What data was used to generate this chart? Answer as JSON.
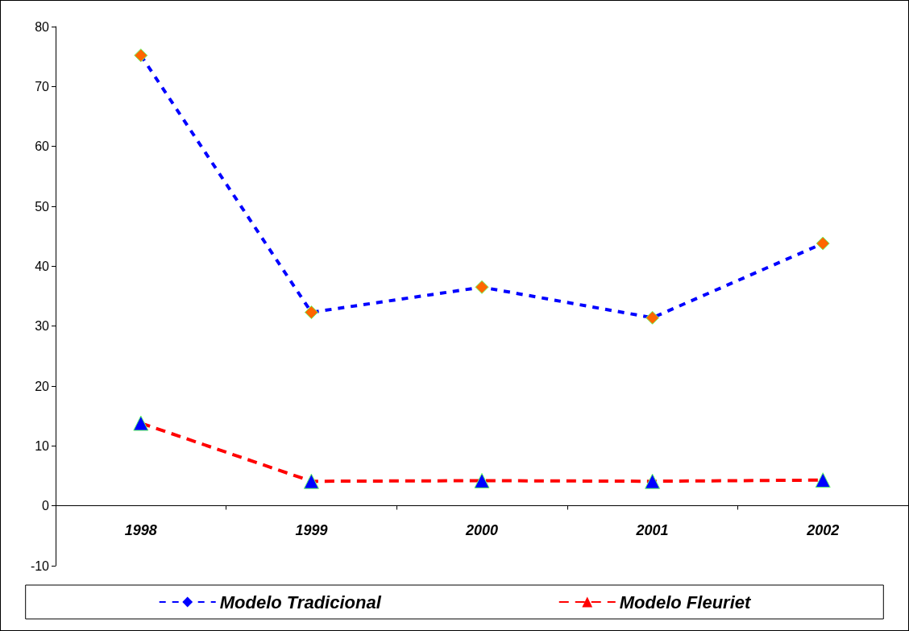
{
  "chart_data": {
    "type": "line",
    "categories": [
      "1998",
      "1999",
      "2000",
      "2001",
      "2002"
    ],
    "series": [
      {
        "name": "Modelo Tradicional",
        "color": "#0000ff",
        "colors": [
          "#ff6600",
          "#ff6600",
          "#ff6600",
          "#ff6600",
          "#ff6600"
        ],
        "marker": "diamond",
        "line_style": "dotted",
        "values": [
          75.2,
          32.3,
          36.5,
          31.4,
          43.8
        ]
      },
      {
        "name": "Modelo Fleuriet",
        "color": "#ff0000",
        "colors": [
          "#0000ff",
          "#0000ff",
          "#0000ff",
          "#0000ff",
          "#0000ff"
        ],
        "marker": "triangle",
        "line_style": "dashed",
        "values": [
          13.8,
          4.1,
          4.2,
          4.1,
          4.3
        ]
      }
    ],
    "ylim": [
      -10,
      80
    ],
    "yticks": [
      -10,
      0,
      10,
      20,
      30,
      40,
      50,
      60,
      70,
      80
    ],
    "legend": "bottom"
  }
}
